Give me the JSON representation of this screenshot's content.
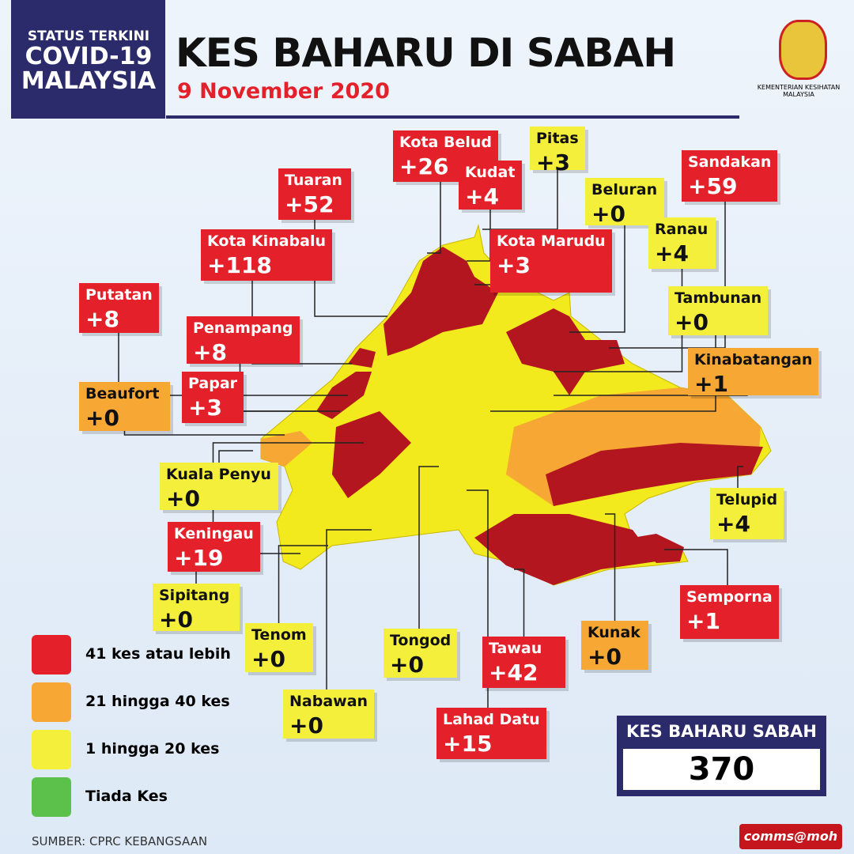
{
  "header": {
    "status": [
      "STATUS TERKINI",
      "COVID-19",
      "MALAYSIA"
    ],
    "title": "KES BAHARU DI SABAH",
    "date": "9 November 2020",
    "ministry": [
      "KEMENTERIAN KESIHATAN",
      "MALAYSIA"
    ]
  },
  "districts": [
    {
      "name": "Kota Belud",
      "cases": "+26",
      "color": "#e4202a"
    },
    {
      "name": "Pitas",
      "cases": "+3",
      "color": "#f4ef3a"
    },
    {
      "name": "Tuaran",
      "cases": "+52",
      "color": "#e4202a"
    },
    {
      "name": "Kudat",
      "cases": "+4",
      "color": "#e4202a"
    },
    {
      "name": "Sandakan",
      "cases": "+59",
      "color": "#e4202a"
    },
    {
      "name": "Beluran",
      "cases": "+0",
      "color": "#f4ef3a"
    },
    {
      "name": "Kota Kinabalu",
      "cases": "+118",
      "color": "#e4202a"
    },
    {
      "name": "Kota Marudu",
      "cases": "+3",
      "color": "#e4202a"
    },
    {
      "name": "Ranau",
      "cases": "+4",
      "color": "#f4ef3a"
    },
    {
      "name": "Putatan",
      "cases": "+8",
      "color": "#e4202a"
    },
    {
      "name": "Tambunan",
      "cases": "+0",
      "color": "#f4ef3a"
    },
    {
      "name": "Penampang",
      "cases": "+8",
      "color": "#e4202a"
    },
    {
      "name": "Kinabatangan",
      "cases": "+1",
      "color": "#f7a734"
    },
    {
      "name": "Papar",
      "cases": "+3",
      "color": "#e4202a"
    },
    {
      "name": "Beaufort",
      "cases": "+0",
      "color": "#f7a734"
    },
    {
      "name": "Kuala Penyu",
      "cases": "+0",
      "color": "#f4ef3a"
    },
    {
      "name": "Telupid",
      "cases": "+4",
      "color": "#f4ef3a"
    },
    {
      "name": "Keningau",
      "cases": "+19",
      "color": "#e4202a"
    },
    {
      "name": "Semporna",
      "cases": "+1",
      "color": "#e4202a"
    },
    {
      "name": "Sipitang",
      "cases": "+0",
      "color": "#f4ef3a"
    },
    {
      "name": "Tenom",
      "cases": "+0",
      "color": "#f4ef3a"
    },
    {
      "name": "Tongod",
      "cases": "+0",
      "color": "#f4ef3a"
    },
    {
      "name": "Tawau",
      "cases": "+42",
      "color": "#e4202a"
    },
    {
      "name": "Kunak",
      "cases": "+0",
      "color": "#f7a734"
    },
    {
      "name": "Nabawan",
      "cases": "+0",
      "color": "#f4ef3a"
    },
    {
      "name": "Lahad Datu",
      "cases": "+15",
      "color": "#e4202a"
    }
  ],
  "legend": [
    {
      "label": "41 kes atau lebih",
      "color": "#e4202a"
    },
    {
      "label": "21 hingga 40 kes",
      "color": "#f7a734"
    },
    {
      "label": "1 hingga 20 kes",
      "color": "#f4ef3a"
    },
    {
      "label": "Tiada Kes",
      "color": "#5cc14a"
    }
  ],
  "total": {
    "label": "KES BAHARU SABAH",
    "value": "370"
  },
  "source": "SUMBER: CPRC KEBANGSAAN",
  "badge": "comms@moh"
}
